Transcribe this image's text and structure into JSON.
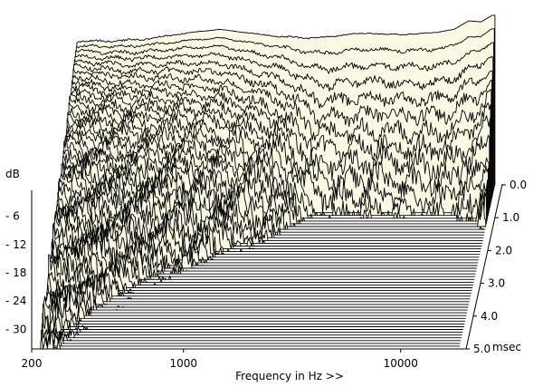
{
  "chart_data": {
    "type": "waterfall",
    "xlabel": "Frequency in Hz >>",
    "ylabel": "dB",
    "zlabel_unit": "msec",
    "x_scale": "log",
    "xlim": [
      200,
      20000
    ],
    "ylim": [
      -33,
      0
    ],
    "zlim": [
      0,
      5
    ],
    "x_ticks": [
      {
        "value": 200,
        "label": "200"
      },
      {
        "value": 1000,
        "label": "1000"
      },
      {
        "value": 10000,
        "label": "10000"
      }
    ],
    "y_ticks": [
      {
        "value": -6,
        "label": "- 6"
      },
      {
        "value": -12,
        "label": "- 12"
      },
      {
        "value": -18,
        "label": "- 18"
      },
      {
        "value": -24,
        "label": "- 24"
      },
      {
        "value": -30,
        "label": "- 30"
      }
    ],
    "z_ticks": [
      {
        "value": 0,
        "label": "0.0"
      },
      {
        "value": 1,
        "label": "1.0"
      },
      {
        "value": 2,
        "label": "2.0"
      },
      {
        "value": 3,
        "label": "3.0"
      },
      {
        "value": 4,
        "label": "4.0"
      },
      {
        "value": 5,
        "label": "5.0"
      }
    ],
    "slice_count": 60,
    "slice_spacing_msec": 0.0833,
    "initial_response_db": {
      "freq_hz": [
        220,
        300,
        400,
        500,
        700,
        1000,
        1500,
        2000,
        2500,
        3000,
        4000,
        5000,
        6000,
        8000,
        10000,
        12000,
        14000,
        16000,
        18000
      ],
      "db": [
        -2.5,
        -2.5,
        -2.3,
        -1.8,
        -0.8,
        0.0,
        -1.0,
        -1.6,
        -1.8,
        -1.7,
        -1.0,
        -0.8,
        -1.1,
        -1.0,
        -0.6,
        0.0,
        1.8,
        1.6,
        3.0
      ]
    },
    "decay_start_db": {
      "freq_hz": [
        220,
        300,
        400,
        500,
        700,
        1000,
        1500,
        2000,
        2500,
        3000,
        4000,
        5000,
        6000,
        8000,
        10000,
        12000,
        14000,
        16000,
        18000
      ],
      "db": [
        -2.5,
        -2.5,
        -2.3,
        -1.8,
        -0.8,
        0.0,
        -1.0,
        -1.6,
        -1.8,
        -1.7,
        -1.0,
        -0.8,
        -1.1,
        -1.0,
        -0.6,
        0.0,
        1.8,
        1.6,
        3.0
      ]
    },
    "decay_rate_db_per_msec": {
      "freq_hz": [
        220,
        300,
        400,
        500,
        700,
        1000,
        1500,
        2000,
        2500,
        3000,
        4000,
        5000,
        6000,
        8000,
        10000,
        12000,
        14000,
        16000,
        18000
      ],
      "rate": [
        5.5,
        7.0,
        8.5,
        9.5,
        12.0,
        14.0,
        17.0,
        20.0,
        27.0,
        33.0,
        34.0,
        33.0,
        33.0,
        34.0,
        35.0,
        35.0,
        33.0,
        31.0,
        27.0
      ]
    },
    "noise_floor_db": -33
  }
}
